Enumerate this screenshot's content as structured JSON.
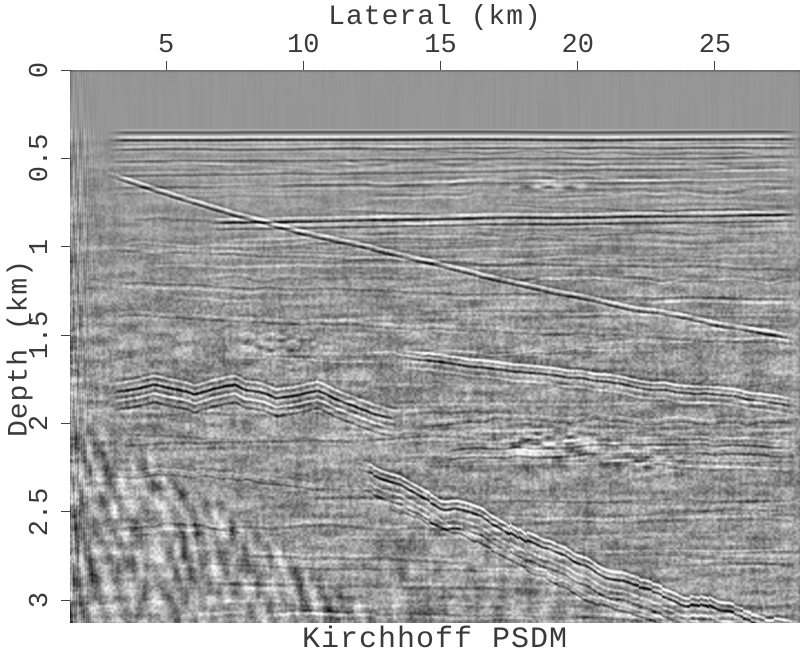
{
  "chart_data": {
    "type": "heatmap",
    "subtype": "seismic-depth-section",
    "title": "Kirchhoff PSDM",
    "xlabel": "Lateral (km)",
    "ylabel": "Depth (km)",
    "xlim": [
      1.5,
      28.1
    ],
    "depth_lim": [
      0,
      3.13
    ],
    "x_ticks": [
      5,
      10,
      15,
      20,
      25
    ],
    "y_ticks": [
      0,
      0.5,
      1,
      1.5,
      2,
      2.5,
      3
    ],
    "colormap": "grayscale",
    "legend": "none",
    "grid": false,
    "background_gray_hex": "#969696",
    "axes_text_hex": "#3a3a3a",
    "water_bottom_km": 0.372,
    "horizons": [
      {
        "name": "seafloor",
        "points": [
          [
            2.9,
            0.375
          ],
          [
            28.1,
            0.372
          ]
        ],
        "band": [
          [
            -0.025,
            0.55
          ],
          [
            0.0,
            -0.5
          ],
          [
            0.02,
            0.85
          ]
        ],
        "wobble": 0.003,
        "wobble_wl": 120,
        "stepped": false,
        "sigma": 2.0
      },
      {
        "name": "shallow-a",
        "points": [
          [
            2.9,
            0.45
          ],
          [
            28.1,
            0.435
          ]
        ],
        "band": [
          [
            0,
            0.5
          ],
          [
            -0.018,
            -0.3
          ]
        ],
        "wobble": 0.004,
        "wobble_wl": 90,
        "stepped": false,
        "sigma": 1.8
      },
      {
        "name": "shallow-b",
        "points": [
          [
            2.9,
            0.515
          ],
          [
            28.1,
            0.49
          ]
        ],
        "band": [
          [
            0,
            0.45
          ],
          [
            0.02,
            -0.25
          ]
        ],
        "wobble": 0.005,
        "wobble_wl": 80,
        "stepped": false,
        "sigma": 1.8
      },
      {
        "name": "shallow-c",
        "points": [
          [
            2.9,
            0.6
          ],
          [
            15.0,
            0.575
          ],
          [
            28.1,
            0.555
          ]
        ],
        "band": [
          [
            0,
            0.38
          ],
          [
            -0.02,
            -0.22
          ]
        ],
        "wobble": 0.006,
        "wobble_wl": 70,
        "stepped": false,
        "sigma": 1.8
      },
      {
        "name": "shallow-d",
        "points": [
          [
            2.9,
            0.665
          ],
          [
            28.1,
            0.625
          ]
        ],
        "band": [
          [
            0,
            0.3
          ],
          [
            0.022,
            -0.2
          ]
        ],
        "wobble": 0.007,
        "wobble_wl": 75,
        "stepped": false,
        "sigma": 1.8
      },
      {
        "name": "marker-dark",
        "points": [
          [
            6.5,
            0.865
          ],
          [
            17.0,
            0.835
          ],
          [
            28.1,
            0.815
          ]
        ],
        "band": [
          [
            -0.022,
            -0.45
          ],
          [
            0,
            0.95
          ],
          [
            0.036,
            0.55
          ]
        ],
        "wobble": 0.004,
        "wobble_wl": 100,
        "stepped": false,
        "sigma": 2.0
      },
      {
        "name": "clinoform-top",
        "points": [
          [
            2.9,
            0.6
          ],
          [
            6.0,
            0.75
          ],
          [
            10.0,
            0.93
          ],
          [
            14.0,
            1.08
          ],
          [
            18.0,
            1.22
          ],
          [
            22.0,
            1.36
          ],
          [
            25.0,
            1.44
          ],
          [
            28.1,
            1.52
          ]
        ],
        "band": [
          [
            -0.022,
            -0.6
          ],
          [
            0,
            0.7
          ]
        ],
        "wobble": 0.008,
        "wobble_wl": 60,
        "stepped": false,
        "sigma": 2.0
      },
      {
        "name": "mid-a",
        "points": [
          [
            2.9,
            1.02
          ],
          [
            10,
            1.06
          ],
          [
            18,
            1.1
          ],
          [
            28.1,
            1.12
          ]
        ],
        "band": [
          [
            0,
            0.3
          ],
          [
            -0.02,
            -0.2
          ]
        ],
        "wobble": 0.012,
        "wobble_wl": 55,
        "stepped": false,
        "sigma": 1.9
      },
      {
        "name": "mid-b",
        "points": [
          [
            2.9,
            1.2
          ],
          [
            12,
            1.245
          ],
          [
            28.1,
            1.3
          ]
        ],
        "band": [
          [
            0,
            0.32
          ],
          [
            0.022,
            -0.2
          ]
        ],
        "wobble": 0.012,
        "wobble_wl": 50,
        "stepped": false,
        "sigma": 1.9
      },
      {
        "name": "mid-c",
        "points": [
          [
            2.9,
            1.38
          ],
          [
            12,
            1.44
          ],
          [
            20,
            1.5
          ],
          [
            28.1,
            1.55
          ]
        ],
        "band": [
          [
            0,
            0.3
          ],
          [
            -0.022,
            -0.2
          ]
        ],
        "wobble": 0.014,
        "wobble_wl": 48,
        "stepped": false,
        "sigma": 1.9
      },
      {
        "name": "rugose-strong",
        "points": [
          [
            2.9,
            1.83
          ],
          [
            4.5,
            1.78
          ],
          [
            6.0,
            1.84
          ],
          [
            7.5,
            1.77
          ],
          [
            9.0,
            1.86
          ],
          [
            10.5,
            1.82
          ],
          [
            12.0,
            1.92
          ],
          [
            13.5,
            1.98
          ]
        ],
        "band": [
          [
            -0.05,
            -0.7
          ],
          [
            0,
            1.1
          ],
          [
            0.05,
            -0.8
          ],
          [
            0.1,
            0.6
          ]
        ],
        "wobble": 0.018,
        "wobble_wl": 28,
        "stepped": false,
        "sigma": 2.3
      },
      {
        "name": "strong-right",
        "points": [
          [
            13.5,
            1.62
          ],
          [
            16,
            1.68
          ],
          [
            19,
            1.73
          ],
          [
            22,
            1.79
          ],
          [
            25,
            1.84
          ],
          [
            28.1,
            1.9
          ]
        ],
        "band": [
          [
            -0.04,
            -0.85
          ],
          [
            0,
            0.9
          ],
          [
            0.05,
            -0.45
          ]
        ],
        "wobble": 0.012,
        "wobble_wl": 40,
        "stepped": false,
        "sigma": 2.2
      },
      {
        "name": "deep-right-a",
        "points": [
          [
            15,
            2.16
          ],
          [
            20,
            2.13
          ],
          [
            24,
            2.12
          ],
          [
            28.1,
            2.14
          ]
        ],
        "band": [
          [
            0,
            0.5
          ],
          [
            0.05,
            0.45
          ],
          [
            -0.04,
            -0.3
          ]
        ],
        "wobble": 0.015,
        "wobble_wl": 40,
        "stepped": false,
        "sigma": 2.0
      },
      {
        "name": "deep-right-b",
        "points": [
          [
            14,
            2.0
          ],
          [
            18,
            1.98
          ],
          [
            22,
            1.99
          ],
          [
            28.1,
            2.0
          ]
        ],
        "band": [
          [
            0,
            0.35
          ],
          [
            -0.025,
            -0.25
          ]
        ],
        "wobble": 0.02,
        "wobble_wl": 36,
        "stepped": false,
        "sigma": 2.0
      },
      {
        "name": "stairstep-unconformity",
        "points": [
          [
            12.0,
            2.28
          ],
          [
            13.5,
            2.33
          ],
          [
            15.0,
            2.47
          ],
          [
            16.5,
            2.53
          ],
          [
            18.0,
            2.68
          ],
          [
            19.5,
            2.76
          ],
          [
            21.0,
            2.88
          ],
          [
            22.5,
            2.94
          ],
          [
            24.0,
            3.03
          ],
          [
            25.5,
            3.08
          ],
          [
            27.0,
            3.13
          ],
          [
            28.1,
            3.18
          ]
        ],
        "band": [
          [
            -0.045,
            -1.0
          ],
          [
            0,
            1.1
          ],
          [
            0.06,
            -0.5
          ],
          [
            0.11,
            0.6
          ]
        ],
        "wobble": 0.02,
        "wobble_wl": 34,
        "stepped": true,
        "sigma": 2.3
      },
      {
        "name": "stairstep-companion",
        "points": [
          [
            13.0,
            2.45
          ],
          [
            15.0,
            2.6
          ],
          [
            17.0,
            2.75
          ],
          [
            19.0,
            2.9
          ],
          [
            21.0,
            3.02
          ],
          [
            23.0,
            3.12
          ],
          [
            25.0,
            3.2
          ]
        ],
        "band": [
          [
            0,
            0.6
          ],
          [
            -0.035,
            -0.45
          ]
        ],
        "wobble": 0.02,
        "wobble_wl": 30,
        "stepped": true,
        "sigma": 2.2
      },
      {
        "name": "deep-left-a",
        "points": [
          [
            2.9,
            2.3
          ],
          [
            5.0,
            2.28
          ],
          [
            8.0,
            2.33
          ],
          [
            11.0,
            2.4
          ]
        ],
        "band": [
          [
            0,
            0.4
          ],
          [
            -0.03,
            -0.3
          ]
        ],
        "wobble": 0.02,
        "wobble_wl": 26,
        "stepped": false,
        "sigma": 2.1
      },
      {
        "name": "deep-left-b",
        "points": [
          [
            2.9,
            2.6
          ],
          [
            5.0,
            2.57
          ],
          [
            8.0,
            2.63
          ]
        ],
        "band": [
          [
            0,
            0.35
          ],
          [
            0.03,
            -0.25
          ]
        ],
        "wobble": 0.025,
        "wobble_wl": 24,
        "stepped": false,
        "sigma": 2.1
      }
    ],
    "patches": [
      {
        "center": [
          19.0,
          2.12
        ],
        "rx": 3.2,
        "rz": 0.17,
        "amp": 0.5
      },
      {
        "center": [
          22.6,
          2.2
        ],
        "rx": 1.8,
        "rz": 0.14,
        "amp": 0.4
      },
      {
        "center": [
          19.0,
          0.65
        ],
        "rx": 1.9,
        "rz": 0.05,
        "amp": 0.45
      },
      {
        "center": [
          9.0,
          1.55
        ],
        "rx": 2.5,
        "rz": 0.2,
        "amp": 0.3
      }
    ],
    "zones": {
      "chaotic_lower_left": {
        "boundary": [
          [
            2.9,
            1.95
          ],
          [
            14.5,
            3.2
          ]
        ],
        "amp": 0.5,
        "fade_km": 0.15
      },
      "below_stairstep": {
        "amp": 0.3
      },
      "left_edge_artifact": {
        "x_extent_km": [
          1.5,
          2.9
        ],
        "amp": 0.5
      },
      "water": {
        "bottom_km": 0.372,
        "grain": 0.025
      }
    },
    "render": {
      "seed": 11,
      "base_gray": 150,
      "contrast": 118,
      "minor_horizons": 95,
      "extra_shallow_horizons": 20,
      "speckle": 0.3,
      "laminae": 0.3,
      "vertical_grain": 0.12
    }
  }
}
